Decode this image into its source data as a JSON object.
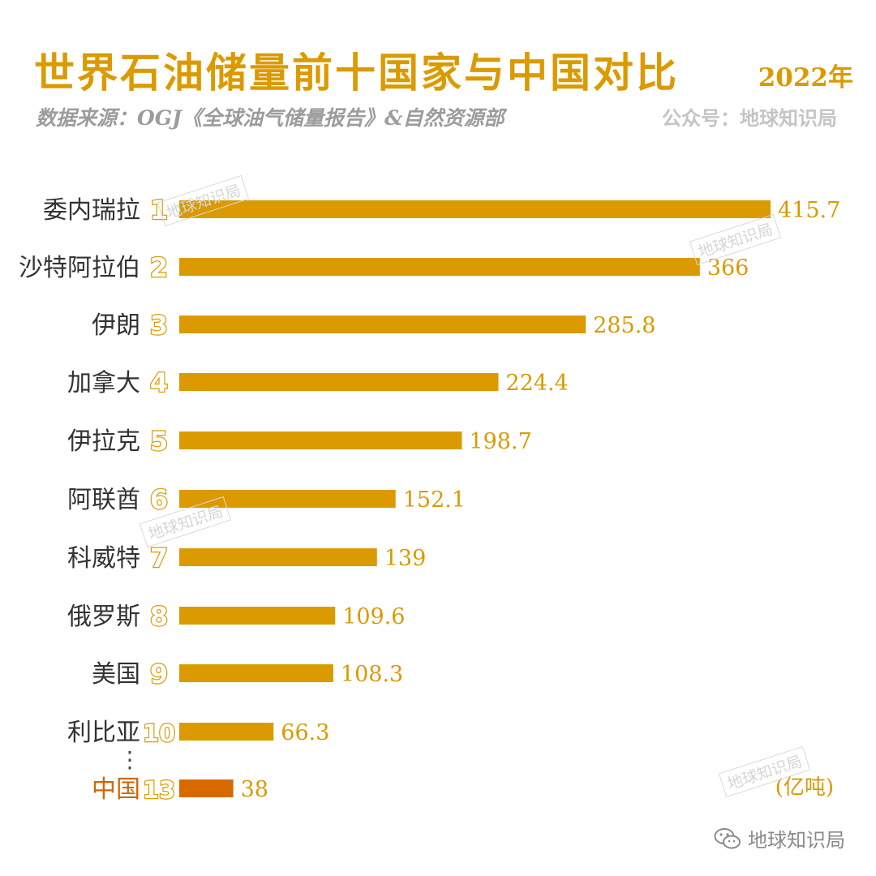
{
  "header": {
    "title": "世界石油储量前十国家与中国对比",
    "year": "2022年",
    "source": "数据来源：OGJ《全球油气储量报告》&自然资源部",
    "account": "公众号：地球知识局"
  },
  "watermark": {
    "text": "地球知识局"
  },
  "footer": {
    "brand": "地球知识局",
    "icon": "wechat-icon"
  },
  "colors": {
    "accent": "#db9a00",
    "china_bar": "#d66a00",
    "china_label": "#d06600",
    "label": "#333333"
  },
  "chart_data": {
    "type": "bar",
    "orientation": "horizontal",
    "unit": "(亿吨)",
    "categories": [
      "委内瑞拉",
      "沙特阿拉伯",
      "伊朗",
      "加拿大",
      "伊拉克",
      "阿联酋",
      "科威特",
      "俄罗斯",
      "美国",
      "利比亚",
      "中国"
    ],
    "ranks": [
      "1",
      "2",
      "3",
      "4",
      "5",
      "6",
      "7",
      "8",
      "9",
      "10",
      "13"
    ],
    "values": [
      415.7,
      366,
      285.8,
      224.4,
      198.7,
      152.1,
      139,
      109.6,
      108.3,
      66.3,
      38
    ],
    "value_labels": [
      "415.7",
      "366",
      "285.8",
      "224.4",
      "198.7",
      "152.1",
      "139",
      "109.6",
      "108.3",
      "66.3",
      "38"
    ],
    "highlight": "中国",
    "gap_marker": "⋮",
    "xlim": [
      0,
      415.7
    ]
  }
}
